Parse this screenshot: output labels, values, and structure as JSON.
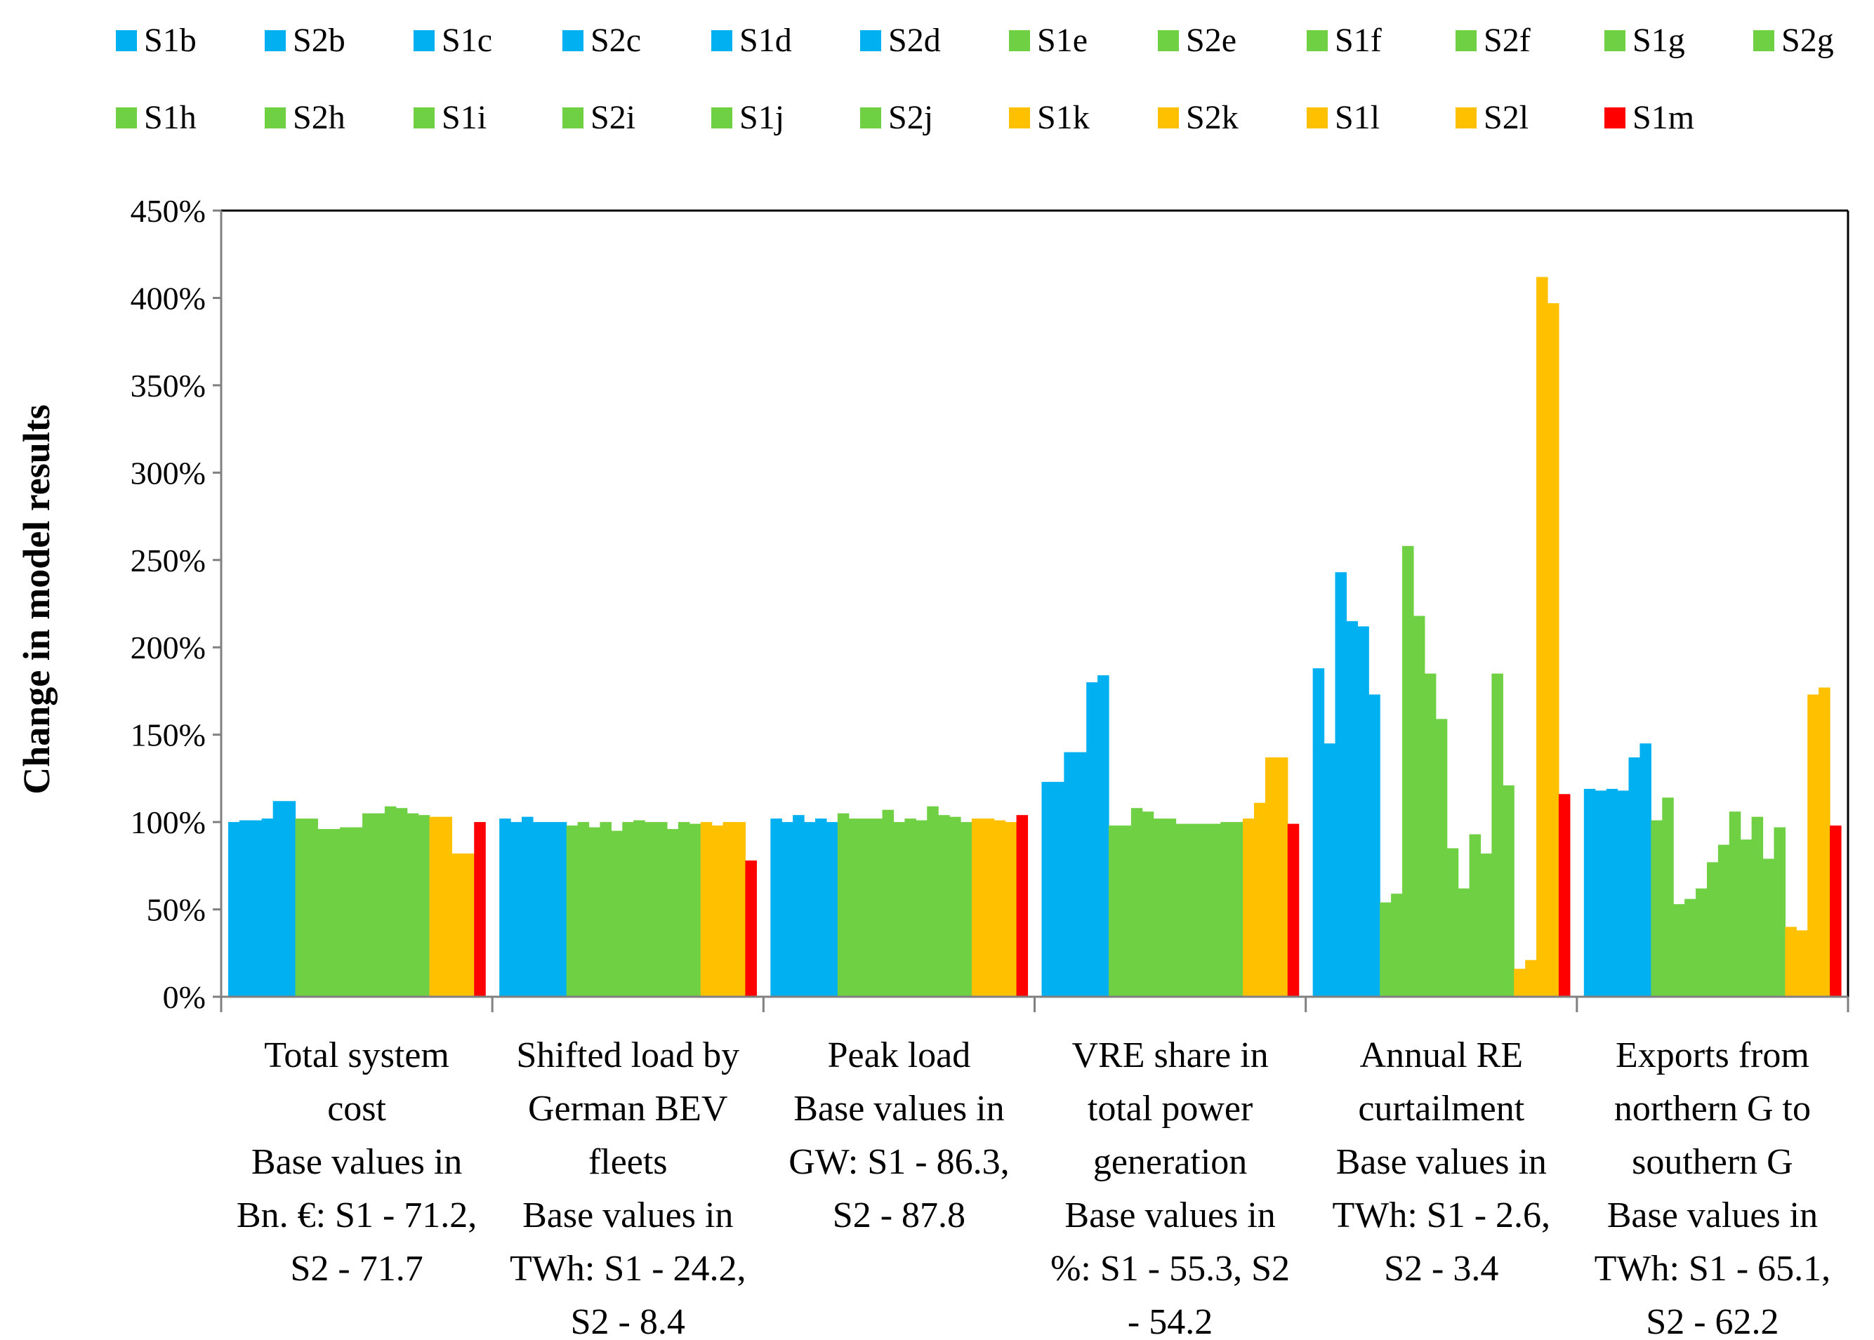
{
  "chart_data": {
    "type": "bar",
    "ylabel": "Change in model results",
    "ylim": [
      0,
      450
    ],
    "yticks": [
      0,
      50,
      100,
      150,
      200,
      250,
      300,
      350,
      400,
      450
    ],
    "ytick_labels": [
      "0%",
      "50%",
      "100%",
      "150%",
      "200%",
      "250%",
      "300%",
      "350%",
      "400%",
      "450%"
    ],
    "legend": [
      {
        "name": "S1b",
        "color": "#00b0f0"
      },
      {
        "name": "S2b",
        "color": "#00b0f0"
      },
      {
        "name": "S1c",
        "color": "#00b0f0"
      },
      {
        "name": "S2c",
        "color": "#00b0f0"
      },
      {
        "name": "S1d",
        "color": "#00b0f0"
      },
      {
        "name": "S2d",
        "color": "#00b0f0"
      },
      {
        "name": "S1e",
        "color": "#70d044"
      },
      {
        "name": "S2e",
        "color": "#70d044"
      },
      {
        "name": "S1f",
        "color": "#70d044"
      },
      {
        "name": "S2f",
        "color": "#70d044"
      },
      {
        "name": "S1g",
        "color": "#70d044"
      },
      {
        "name": "S2g",
        "color": "#70d044"
      },
      {
        "name": "S1h",
        "color": "#70d044"
      },
      {
        "name": "S2h",
        "color": "#70d044"
      },
      {
        "name": "S1i",
        "color": "#70d044"
      },
      {
        "name": "S2i",
        "color": "#70d044"
      },
      {
        "name": "S1j",
        "color": "#70d044"
      },
      {
        "name": "S2j",
        "color": "#70d044"
      },
      {
        "name": "S1k",
        "color": "#ffc000"
      },
      {
        "name": "S2k",
        "color": "#ffc000"
      },
      {
        "name": "S1l",
        "color": "#ffc000"
      },
      {
        "name": "S2l",
        "color": "#ffc000"
      },
      {
        "name": "S1m",
        "color": "#ff0000"
      }
    ],
    "categories": [
      {
        "lines": [
          "Total system",
          "cost",
          "Base values in",
          "Bn. €: S1 - 71.2,",
          "S2 - 71.7"
        ],
        "values": [
          100,
          101,
          101,
          102,
          112,
          112,
          102,
          102,
          96,
          96,
          97,
          97,
          105,
          105,
          109,
          108,
          105,
          104,
          103,
          103,
          82,
          82,
          100
        ]
      },
      {
        "lines": [
          "Shifted load by",
          "German BEV",
          "fleets",
          "Base values in",
          "TWh: S1 - 24.2,",
          "S2 - 8.4"
        ],
        "values": [
          102,
          100,
          103,
          100,
          100,
          100,
          98,
          100,
          97,
          100,
          95,
          100,
          101,
          100,
          100,
          96,
          100,
          99,
          100,
          98,
          100,
          100,
          78
        ]
      },
      {
        "lines": [
          "Peak load",
          "Base values in",
          "GW: S1 - 86.3,",
          "S2 - 87.8"
        ],
        "values": [
          102,
          100,
          104,
          100,
          102,
          100,
          105,
          102,
          102,
          102,
          107,
          100,
          102,
          101,
          109,
          104,
          103,
          100,
          102,
          102,
          101,
          100,
          104
        ]
      },
      {
        "lines": [
          "VRE share in",
          "total power",
          "generation",
          "Base values in",
          "%: S1 - 55.3, S2",
          "- 54.2"
        ],
        "values": [
          123,
          123,
          140,
          140,
          180,
          184,
          98,
          98,
          108,
          106,
          102,
          102,
          99,
          99,
          99,
          99,
          100,
          100,
          102,
          111,
          137,
          137,
          99
        ]
      },
      {
        "lines": [
          "Annual RE",
          "curtailment",
          "Base values in",
          "TWh: S1 - 2.6,",
          "S2 - 3.4"
        ],
        "values": [
          188,
          145,
          243,
          215,
          212,
          173,
          54,
          59,
          258,
          218,
          185,
          159,
          85,
          62,
          93,
          82,
          185,
          121,
          16,
          21,
          412,
          397,
          116
        ]
      },
      {
        "lines": [
          "Exports from",
          "northern G to",
          "southern G",
          "Base values in",
          "TWh: S1 - 65.1,",
          "S2 - 62.2"
        ],
        "values": [
          119,
          118,
          119,
          118,
          137,
          145,
          101,
          114,
          53,
          56,
          62,
          77,
          87,
          106,
          90,
          103,
          79,
          97,
          40,
          38,
          173,
          177,
          98
        ]
      }
    ]
  }
}
